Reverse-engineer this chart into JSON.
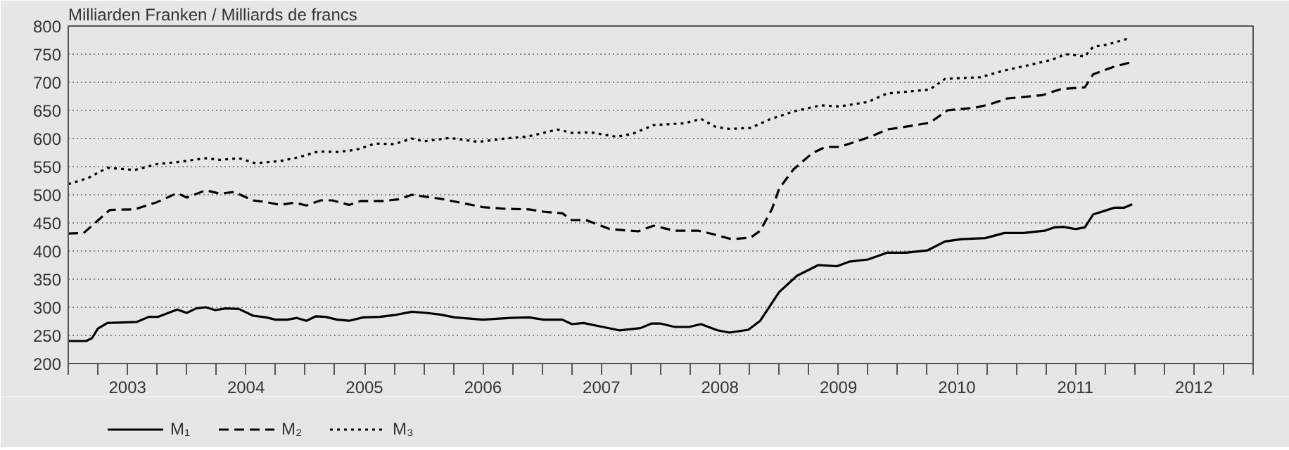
{
  "chart_data": {
    "type": "line",
    "title": "Milliarden Franken / Milliards de francs",
    "xlim": [
      2003,
      2013
    ],
    "xticks": [
      {
        "value": 2003,
        "label": null
      },
      {
        "value": 2003.25,
        "label": null
      },
      {
        "value": 2003.5,
        "label": "2003"
      },
      {
        "value": 2003.75,
        "label": null
      },
      {
        "value": 2004,
        "label": null
      },
      {
        "value": 2004.25,
        "label": null
      },
      {
        "value": 2004.5,
        "label": "2004"
      },
      {
        "value": 2004.75,
        "label": null
      },
      {
        "value": 2005,
        "label": null
      },
      {
        "value": 2005.25,
        "label": null
      },
      {
        "value": 2005.5,
        "label": "2005"
      },
      {
        "value": 2005.75,
        "label": null
      },
      {
        "value": 2006,
        "label": null
      },
      {
        "value": 2006.25,
        "label": null
      },
      {
        "value": 2006.5,
        "label": "2006"
      },
      {
        "value": 2006.75,
        "label": null
      },
      {
        "value": 2007,
        "label": null
      },
      {
        "value": 2007.25,
        "label": null
      },
      {
        "value": 2007.5,
        "label": "2007"
      },
      {
        "value": 2007.75,
        "label": null
      },
      {
        "value": 2008,
        "label": null
      },
      {
        "value": 2008.25,
        "label": null
      },
      {
        "value": 2008.5,
        "label": "2008"
      },
      {
        "value": 2008.75,
        "label": null
      },
      {
        "value": 2009,
        "label": null
      },
      {
        "value": 2009.25,
        "label": null
      },
      {
        "value": 2009.5,
        "label": "2009"
      },
      {
        "value": 2009.75,
        "label": null
      },
      {
        "value": 2010,
        "label": null
      },
      {
        "value": 2010.25,
        "label": null
      },
      {
        "value": 2010.5,
        "label": "2010"
      },
      {
        "value": 2010.75,
        "label": null
      },
      {
        "value": 2011,
        "label": null
      },
      {
        "value": 2011.25,
        "label": null
      },
      {
        "value": 2011.5,
        "label": "2011"
      },
      {
        "value": 2011.75,
        "label": null
      },
      {
        "value": 2012,
        "label": null
      },
      {
        "value": 2012.25,
        "label": null
      },
      {
        "value": 2012.5,
        "label": "2012"
      },
      {
        "value": 2012.75,
        "label": null
      },
      {
        "value": 2013,
        "label": null
      }
    ],
    "ylim": [
      200,
      800
    ],
    "yticks": [
      200,
      250,
      300,
      350,
      400,
      450,
      500,
      550,
      600,
      650,
      700,
      750,
      800
    ],
    "grid": "y",
    "legend": "bottom left",
    "series": [
      {
        "name": "M₁",
        "color": "#000000",
        "line_style": "solid",
        "x": [
          2003.0,
          2003.15,
          2003.2,
          2003.25,
          2003.33,
          2003.58,
          2003.68,
          2003.76,
          2003.92,
          2004.0,
          2004.08,
          2004.16,
          2004.24,
          2004.33,
          2004.44,
          2004.56,
          2004.67,
          2004.75,
          2004.85,
          2004.93,
          2005.01,
          2005.09,
          2005.17,
          2005.27,
          2005.37,
          2005.49,
          2005.63,
          2005.75,
          2005.9,
          2006.02,
          2006.14,
          2006.26,
          2006.5,
          2006.73,
          2006.89,
          2007.01,
          2007.17,
          2007.25,
          2007.35,
          2007.49,
          2007.65,
          2007.83,
          2007.92,
          2008.0,
          2008.12,
          2008.24,
          2008.34,
          2008.48,
          2008.58,
          2008.74,
          2008.84,
          2009.0,
          2009.15,
          2009.33,
          2009.49,
          2009.59,
          2009.75,
          2009.91,
          2010.07,
          2010.25,
          2010.4,
          2010.54,
          2010.74,
          2010.9,
          2011.06,
          2011.24,
          2011.32,
          2011.4,
          2011.5,
          2011.58,
          2011.65,
          2011.83,
          2011.91,
          2011.98
        ],
        "values": [
          240,
          240,
          245,
          262,
          272,
          274,
          283,
          283,
          296,
          290,
          298,
          300,
          295,
          298,
          297,
          285,
          282,
          278,
          278,
          281,
          276,
          284,
          283,
          278,
          276,
          282,
          283,
          286,
          292,
          290,
          287,
          282,
          278,
          281,
          282,
          278,
          278,
          270,
          272,
          266,
          259,
          263,
          271,
          271,
          265,
          265,
          270,
          259,
          255,
          260,
          276,
          327,
          356,
          375,
          373,
          381,
          385,
          397,
          397,
          401,
          417,
          421,
          423,
          432,
          432,
          436,
          442,
          443,
          439,
          442,
          465,
          477,
          477,
          483
        ]
      },
      {
        "name": "M₂",
        "color": "#000000",
        "line_style": "dashed",
        "x": [
          2003.0,
          2003.13,
          2003.27,
          2003.35,
          2003.56,
          2003.75,
          2003.92,
          2004.0,
          2004.16,
          2004.28,
          2004.4,
          2004.56,
          2004.67,
          2004.79,
          2004.91,
          2005.01,
          2005.13,
          2005.23,
          2005.37,
          2005.47,
          2005.67,
          2005.79,
          2005.9,
          2006.0,
          2006.14,
          2006.5,
          2006.69,
          2006.89,
          2007.01,
          2007.17,
          2007.25,
          2007.37,
          2007.57,
          2007.81,
          2007.94,
          2008.12,
          2008.32,
          2008.46,
          2008.6,
          2008.76,
          2008.84,
          2008.94,
          2009.0,
          2009.12,
          2009.28,
          2009.39,
          2009.51,
          2009.77,
          2009.91,
          2010.07,
          2010.27,
          2010.42,
          2010.66,
          2010.78,
          2010.92,
          2011.22,
          2011.38,
          2011.58,
          2011.65,
          2011.83,
          2011.98
        ],
        "values": [
          431,
          432,
          458,
          473,
          474,
          487,
          503,
          495,
          508,
          502,
          505,
          490,
          487,
          482,
          486,
          481,
          490,
          490,
          482,
          489,
          489,
          492,
          500,
          497,
          493,
          478,
          475,
          474,
          470,
          467,
          455,
          455,
          439,
          435,
          445,
          436,
          436,
          429,
          421,
          424,
          436,
          475,
          511,
          545,
          574,
          585,
          585,
          603,
          616,
          621,
          628,
          650,
          655,
          661,
          671,
          677,
          688,
          691,
          714,
          728,
          736
        ]
      },
      {
        "name": "M₃",
        "color": "#000000",
        "line_style": "dotted",
        "x": [
          2003.0,
          2003.17,
          2003.33,
          2003.56,
          2003.76,
          2003.92,
          2004.16,
          2004.28,
          2004.44,
          2004.58,
          2004.79,
          2004.95,
          2005.11,
          2005.27,
          2005.43,
          2005.59,
          2005.75,
          2005.9,
          2006.0,
          2006.22,
          2006.46,
          2006.69,
          2006.89,
          2007.13,
          2007.25,
          2007.41,
          2007.63,
          2007.77,
          2007.94,
          2008.2,
          2008.34,
          2008.46,
          2008.58,
          2008.76,
          2008.92,
          2009.12,
          2009.35,
          2009.51,
          2009.75,
          2009.91,
          2010.27,
          2010.4,
          2010.7,
          2010.9,
          2011.14,
          2011.3,
          2011.42,
          2011.58,
          2011.65,
          2011.77,
          2011.95
        ],
        "values": [
          519,
          530,
          548,
          544,
          555,
          558,
          565,
          562,
          565,
          556,
          560,
          567,
          577,
          576,
          580,
          591,
          590,
          600,
          595,
          601,
          594,
          600,
          604,
          616,
          610,
          611,
          603,
          609,
          624,
          627,
          635,
          621,
          617,
          619,
          634,
          648,
          659,
          657,
          665,
          680,
          687,
          706,
          709,
          721,
          732,
          740,
          750,
          746,
          763,
          767,
          778
        ]
      }
    ]
  }
}
